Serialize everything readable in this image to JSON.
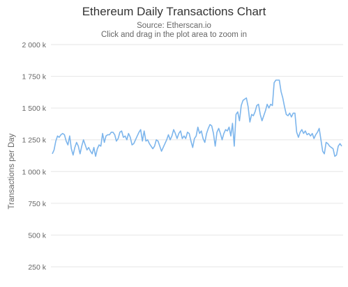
{
  "chart_data": {
    "type": "line",
    "title": "Ethereum Daily Transactions Chart",
    "subtitle": "Source: Etherscan.io",
    "instruction": "Click and drag in the plot area to zoom in",
    "ylabel": "Transactions per Day",
    "xlabel": "",
    "ylim": [
      250000,
      2000000
    ],
    "yticks": [
      250000,
      500000,
      750000,
      1000000,
      1250000,
      1500000,
      1750000,
      2000000
    ],
    "ytick_labels": [
      "250 k",
      "500 k",
      "750 k",
      "1 000 k",
      "1 250 k",
      "1 500 k",
      "1 750 k",
      "2 000 k"
    ],
    "grid": true,
    "series": [
      {
        "color": "#7cb5ec",
        "values": [
          1140000,
          1170000,
          1240000,
          1280000,
          1270000,
          1290000,
          1300000,
          1290000,
          1240000,
          1210000,
          1280000,
          1180000,
          1130000,
          1190000,
          1230000,
          1200000,
          1140000,
          1200000,
          1250000,
          1210000,
          1170000,
          1190000,
          1160000,
          1140000,
          1190000,
          1120000,
          1180000,
          1210000,
          1200000,
          1300000,
          1230000,
          1280000,
          1290000,
          1290000,
          1310000,
          1310000,
          1290000,
          1240000,
          1260000,
          1310000,
          1320000,
          1270000,
          1280000,
          1250000,
          1300000,
          1270000,
          1210000,
          1220000,
          1250000,
          1280000,
          1310000,
          1330000,
          1240000,
          1320000,
          1240000,
          1250000,
          1220000,
          1200000,
          1180000,
          1200000,
          1250000,
          1240000,
          1200000,
          1160000,
          1190000,
          1220000,
          1250000,
          1290000,
          1250000,
          1280000,
          1330000,
          1300000,
          1260000,
          1300000,
          1320000,
          1260000,
          1280000,
          1260000,
          1310000,
          1300000,
          1240000,
          1190000,
          1260000,
          1280000,
          1350000,
          1300000,
          1320000,
          1260000,
          1230000,
          1300000,
          1340000,
          1370000,
          1360000,
          1300000,
          1200000,
          1310000,
          1340000,
          1300000,
          1250000,
          1300000,
          1330000,
          1320000,
          1350000,
          1280000,
          1380000,
          1200000,
          1450000,
          1470000,
          1400000,
          1520000,
          1560000,
          1570000,
          1580000,
          1510000,
          1390000,
          1450000,
          1440000,
          1470000,
          1520000,
          1530000,
          1450000,
          1400000,
          1440000,
          1480000,
          1530000,
          1500000,
          1530000,
          1520000,
          1700000,
          1720000,
          1720000,
          1720000,
          1630000,
          1580000,
          1510000,
          1450000,
          1440000,
          1460000,
          1430000,
          1460000,
          1460000,
          1310000,
          1270000,
          1310000,
          1330000,
          1300000,
          1320000,
          1290000,
          1300000,
          1280000,
          1300000,
          1260000,
          1290000,
          1310000,
          1340000,
          1250000,
          1160000,
          1140000,
          1230000,
          1220000,
          1200000,
          1190000,
          1180000,
          1120000,
          1130000,
          1200000,
          1220000,
          1200000
        ]
      }
    ]
  }
}
